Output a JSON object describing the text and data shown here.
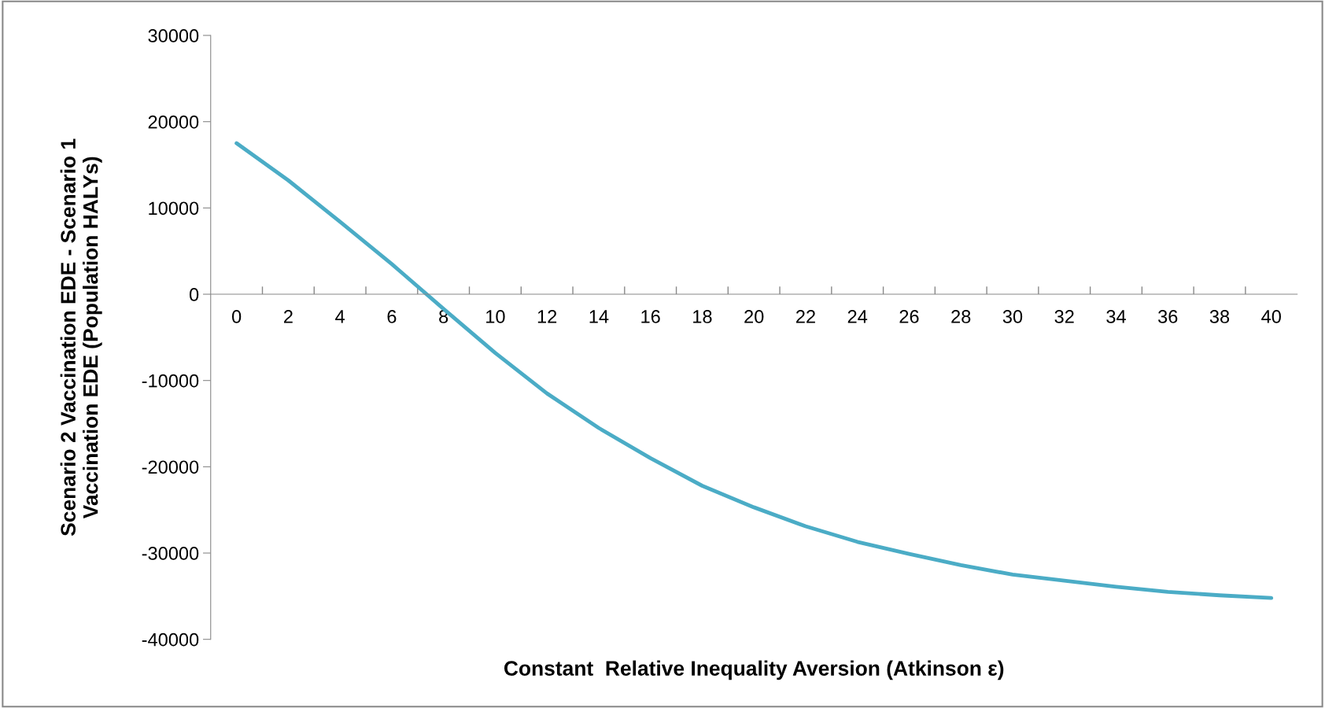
{
  "chart_data": {
    "type": "line",
    "xlabel": "Constant  Relative Inequality Aversion (Atkinson ε)",
    "ylabel": "Scenario 2 Vaccination EDE - Scenario 1\nVaccination EDE (Population HALYs)",
    "categories": [
      "0",
      "2",
      "4",
      "6",
      "8",
      "10",
      "12",
      "14",
      "16",
      "18",
      "20",
      "22",
      "24",
      "26",
      "28",
      "30",
      "32",
      "34",
      "36",
      "38",
      "40"
    ],
    "series": [
      {
        "color": "#4bacc6",
        "values": [
          17500,
          13200,
          8400,
          3500,
          -1700,
          -6800,
          -11500,
          -15500,
          -19000,
          -22200,
          -24700,
          -26900,
          -28700,
          -30100,
          -31400,
          -32500,
          -33200,
          -33900,
          -34500,
          -34900,
          -35200
        ]
      }
    ],
    "ylim": [
      -40000,
      30000
    ],
    "yticks": [
      -40000,
      -30000,
      -20000,
      -10000,
      0,
      10000,
      20000,
      30000
    ],
    "grid": false,
    "marker": "none",
    "line_style": "solid"
  }
}
